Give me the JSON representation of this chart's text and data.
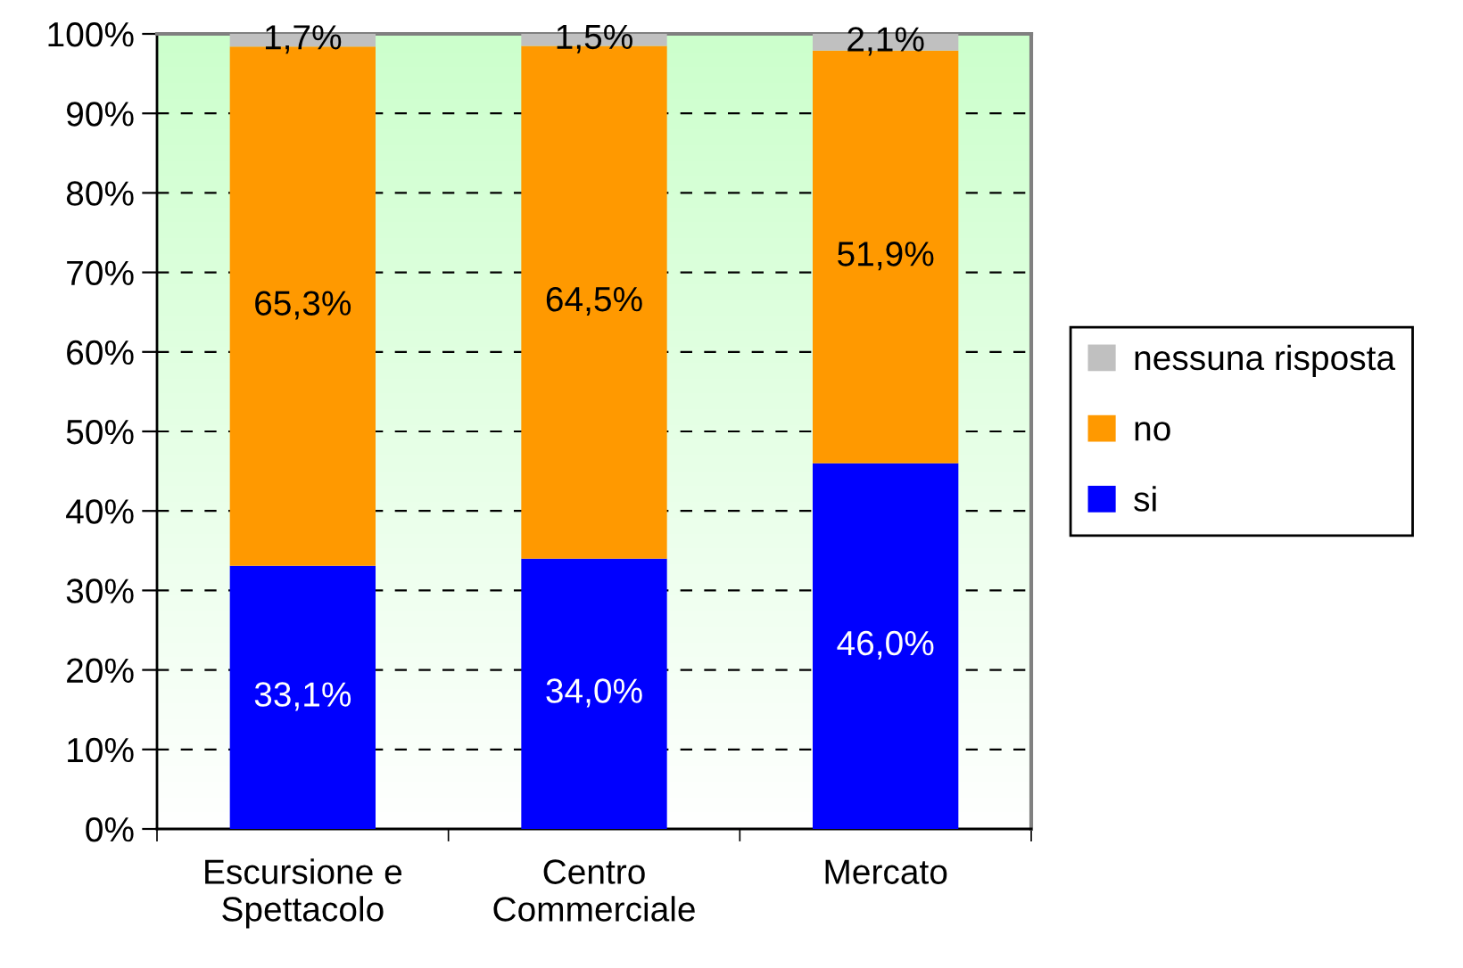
{
  "chart_data": {
    "type": "bar",
    "stacked": true,
    "categories": [
      "Escursione e\nSpettacolo",
      "Centro\nCommerciale",
      "Mercato"
    ],
    "series": [
      {
        "name": "si",
        "color": "#0000ff",
        "values": [
          33.1,
          34.0,
          46.0
        ],
        "value_labels": [
          "33,1%",
          "34,0%",
          "46,0%"
        ]
      },
      {
        "name": "no",
        "color": "#ff9900",
        "values": [
          65.3,
          64.5,
          51.9
        ],
        "value_labels": [
          "65,3%",
          "64,5%",
          "51,9%"
        ]
      },
      {
        "name": "nessuna risposta",
        "color": "#c0c0c0",
        "values": [
          1.7,
          1.5,
          2.1
        ],
        "value_labels": [
          "1,7%",
          "1,5%",
          "2,1%"
        ]
      }
    ],
    "ylim": [
      0,
      100
    ],
    "yticks": [
      {
        "value": 0,
        "label": "0%"
      },
      {
        "value": 10,
        "label": "10%"
      },
      {
        "value": 20,
        "label": "20%"
      },
      {
        "value": 30,
        "label": "30%"
      },
      {
        "value": 40,
        "label": "40%"
      },
      {
        "value": 50,
        "label": "50%"
      },
      {
        "value": 60,
        "label": "60%"
      },
      {
        "value": 70,
        "label": "70%"
      },
      {
        "value": 80,
        "label": "80%"
      },
      {
        "value": 90,
        "label": "90%"
      },
      {
        "value": 100,
        "label": "100%"
      }
    ],
    "grid": "y",
    "legend": "right"
  }
}
